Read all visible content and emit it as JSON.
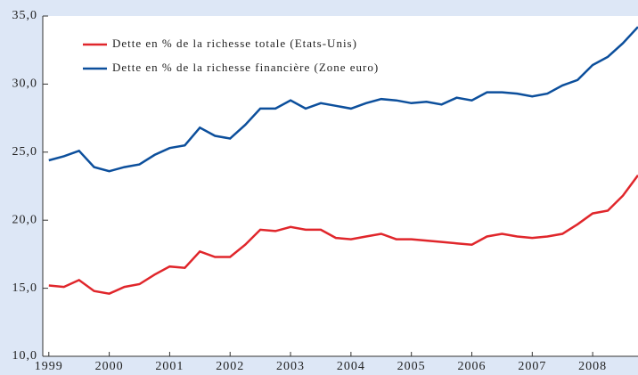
{
  "chart_data": {
    "type": "line",
    "x": [
      1999,
      1999.25,
      1999.5,
      1999.75,
      2000,
      2000.25,
      2000.5,
      2000.75,
      2001,
      2001.25,
      2001.5,
      2001.75,
      2002,
      2002.25,
      2002.5,
      2002.75,
      2003,
      2003.25,
      2003.5,
      2003.75,
      2004,
      2004.25,
      2004.5,
      2004.75,
      2005,
      2005.25,
      2005.5,
      2005.75,
      2006,
      2006.25,
      2006.5,
      2006.75,
      2007,
      2007.25,
      2007.5,
      2007.75,
      2008,
      2008.25,
      2008.5,
      2008.75
    ],
    "series": [
      {
        "name": "Dette en % de la richesse totale (Etats-Unis)",
        "color": "#e0262b",
        "values": [
          15.2,
          15.1,
          15.6,
          14.8,
          14.6,
          15.1,
          15.3,
          16.0,
          16.6,
          16.5,
          17.7,
          17.3,
          17.3,
          18.2,
          19.3,
          19.2,
          19.5,
          19.3,
          19.3,
          18.7,
          18.6,
          18.8,
          19.0,
          18.6,
          18.6,
          18.5,
          18.4,
          18.3,
          18.2,
          18.8,
          19.0,
          18.8,
          18.7,
          18.8,
          19.0,
          19.7,
          20.5,
          20.7,
          21.8,
          23.3
        ]
      },
      {
        "name": "Dette en % de la richesse financière (Zone euro)",
        "color": "#0c4f9c",
        "values": [
          24.4,
          24.7,
          25.1,
          23.9,
          23.6,
          23.9,
          24.1,
          24.8,
          25.3,
          25.5,
          26.8,
          26.2,
          26.0,
          27.0,
          28.2,
          28.2,
          28.8,
          28.2,
          28.6,
          28.4,
          28.2,
          28.6,
          28.9,
          28.8,
          28.6,
          28.7,
          28.5,
          29.0,
          28.8,
          29.4,
          29.4,
          29.3,
          29.1,
          29.3,
          29.9,
          30.3,
          31.4,
          32.0,
          33.0,
          34.2
        ]
      }
    ],
    "xlim": [
      1998.9,
      2008.75
    ],
    "xticks": [
      1999,
      2000,
      2001,
      2002,
      2003,
      2004,
      2005,
      2006,
      2007,
      2008
    ],
    "ylim": [
      10,
      35
    ],
    "yticks": [
      {
        "value": 10,
        "label": "10,0"
      },
      {
        "value": 15,
        "label": "15,0"
      },
      {
        "value": 20,
        "label": "20,0"
      },
      {
        "value": 25,
        "label": "25,0"
      },
      {
        "value": 30,
        "label": "30,0"
      },
      {
        "value": 35,
        "label": "35,0"
      }
    ],
    "legend": "upper left"
  }
}
